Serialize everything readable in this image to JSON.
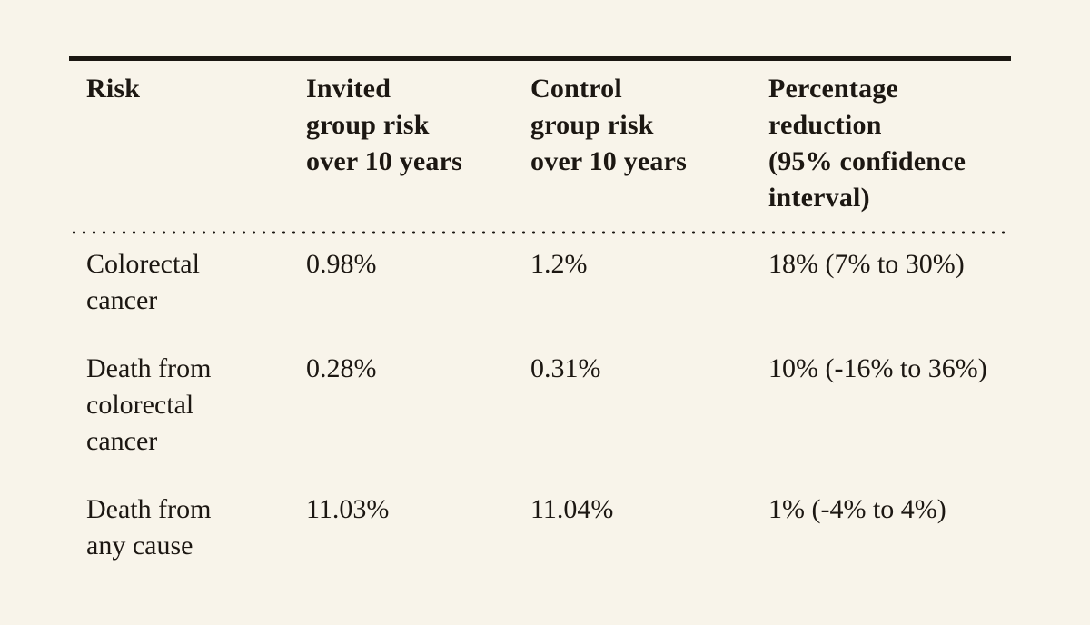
{
  "colors": {
    "background": "#f8f4ea",
    "text": "#1c1712",
    "rule": "#1b1712"
  },
  "table": {
    "header": [
      "Risk",
      "Invited\ngroup risk\nover 10 years",
      "Control\ngroup risk\nover 10 years",
      "Percentage\nreduction\n(95% confidence\ninterval)"
    ],
    "rows": [
      [
        "Colorectal\ncancer",
        "0.98%",
        "1.2%",
        "18% (7% to 30%)"
      ],
      [
        "Death from\ncolorectal\ncancer",
        "0.28%",
        "0.31%",
        "10% (-16% to 36%)"
      ],
      [
        "Death from\nany cause",
        "11.03%",
        "11.04%",
        "1% (-4% to 4%)"
      ]
    ]
  },
  "chart_data": {
    "type": "table",
    "title": "",
    "columns": [
      "Risk",
      "Invited group risk over 10 years",
      "Control group risk over 10 years",
      "Percentage reduction (95% confidence interval)"
    ],
    "rows": [
      [
        "Colorectal cancer",
        "0.98%",
        "1.2%",
        "18% (7% to 30%)"
      ],
      [
        "Death from colorectal cancer",
        "0.28%",
        "0.31%",
        "10% (-16% to 36%)"
      ],
      [
        "Death from any cause",
        "11.03%",
        "11.04%",
        "1% (-4% to 4%)"
      ]
    ],
    "values_numeric": {
      "invited_group_risk_pct": [
        0.98,
        0.28,
        11.03
      ],
      "control_group_risk_pct": [
        1.2,
        0.31,
        11.04
      ],
      "percentage_reduction_pct": [
        18,
        10,
        1
      ],
      "ci_95_low_pct": [
        7,
        -16,
        -4
      ],
      "ci_95_high_pct": [
        30,
        36,
        4
      ]
    },
    "layout": {
      "top_rule": "solid",
      "header_divider": "dotted",
      "grid": "off"
    }
  }
}
